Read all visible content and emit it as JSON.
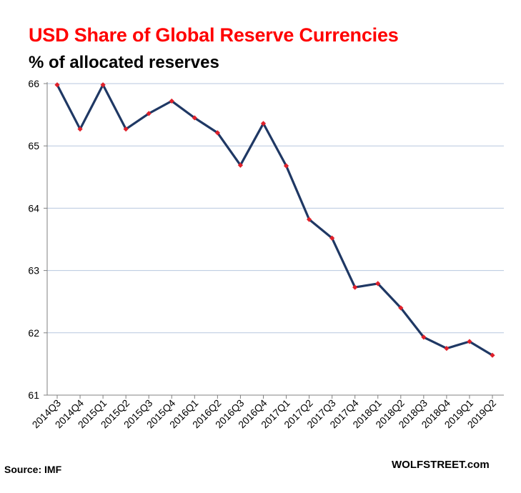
{
  "chart_data": {
    "type": "line",
    "title": "USD Share of Global  Reserve Currencies",
    "subtitle": "% of allocated reserves",
    "categories": [
      "2014Q3",
      "2014Q4",
      "2015Q1",
      "2015Q2",
      "2015Q3",
      "2015Q4",
      "2016Q1",
      "2016Q2",
      "2016Q3",
      "2016Q4",
      "2017Q1",
      "2017Q2",
      "2017Q3",
      "2017Q4",
      "2018Q1",
      "2018Q2",
      "2018Q3",
      "2018Q4",
      "2019Q1",
      "2019Q2"
    ],
    "series": [
      {
        "name": "USD share",
        "values": [
          65.98,
          65.27,
          65.98,
          65.27,
          65.52,
          65.72,
          65.45,
          65.21,
          64.69,
          65.36,
          64.68,
          63.82,
          63.52,
          62.73,
          62.79,
          62.4,
          61.93,
          61.75,
          61.86,
          61.64
        ]
      }
    ],
    "xlabel": "",
    "ylabel": "",
    "ylim": [
      61,
      66
    ],
    "yticks": [
      "61",
      "62",
      "63",
      "64",
      "65",
      "66"
    ],
    "grid": true,
    "source": "Source: IMF",
    "brand": "WOLFSTREET.com",
    "colors": {
      "title": "#ff0000",
      "line": "#1f3864",
      "marker": "#e0202a",
      "grid": "#b7c7df"
    }
  }
}
